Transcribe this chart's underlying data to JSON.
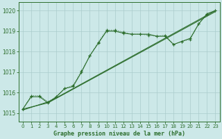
{
  "bg_color": "#cce8e8",
  "grid_color": "#aacccc",
  "line_color": "#2d6e2d",
  "title": "Graphe pression niveau de la mer (hPa)",
  "xlim": [
    -0.5,
    23.5
  ],
  "ylim": [
    1014.6,
    1020.4
  ],
  "yticks": [
    1015,
    1016,
    1017,
    1018,
    1019,
    1020
  ],
  "xticks": [
    0,
    1,
    2,
    3,
    4,
    5,
    6,
    7,
    8,
    9,
    10,
    11,
    12,
    13,
    14,
    15,
    16,
    17,
    18,
    19,
    20,
    21,
    22,
    23
  ],
  "line_zigzag_x": [
    0,
    1,
    2,
    3,
    4,
    5,
    6,
    7,
    8,
    9,
    10,
    11,
    12,
    13,
    14,
    15,
    16,
    17,
    18,
    19,
    20,
    21,
    22,
    23
  ],
  "line_zigzag_y": [
    1015.2,
    1015.8,
    1015.8,
    1015.5,
    1015.8,
    1016.2,
    1016.3,
    1017.0,
    1017.8,
    1018.4,
    1019.0,
    1019.0,
    1018.9,
    1018.85,
    1018.85,
    1018.85,
    1018.75,
    1018.75,
    1018.35,
    1018.5,
    1018.65,
    1019.35,
    1019.85,
    1020.0
  ],
  "line_trend1_x": [
    0,
    3,
    4,
    23
  ],
  "line_trend1_y": [
    1015.15,
    1015.55,
    1015.75,
    1020.0
  ],
  "line_trend2_x": [
    0,
    3,
    23
  ],
  "line_trend2_y": [
    1015.2,
    1015.5,
    1019.95
  ],
  "dotted_x": [
    0,
    1,
    2,
    3,
    4,
    5,
    6,
    7,
    8,
    9,
    10,
    11,
    12,
    13,
    14,
    15,
    16,
    17,
    18,
    19,
    20,
    21,
    22,
    23
  ],
  "dotted_y": [
    1015.2,
    1015.85,
    1015.85,
    1015.55,
    1015.8,
    1016.2,
    1016.35,
    1017.05,
    1017.8,
    1018.45,
    1019.05,
    1019.05,
    1018.95,
    1018.85,
    1018.85,
    1018.8,
    1018.75,
    1018.8,
    1018.35,
    1018.5,
    1018.6,
    1019.35,
    1019.8,
    1020.0
  ]
}
